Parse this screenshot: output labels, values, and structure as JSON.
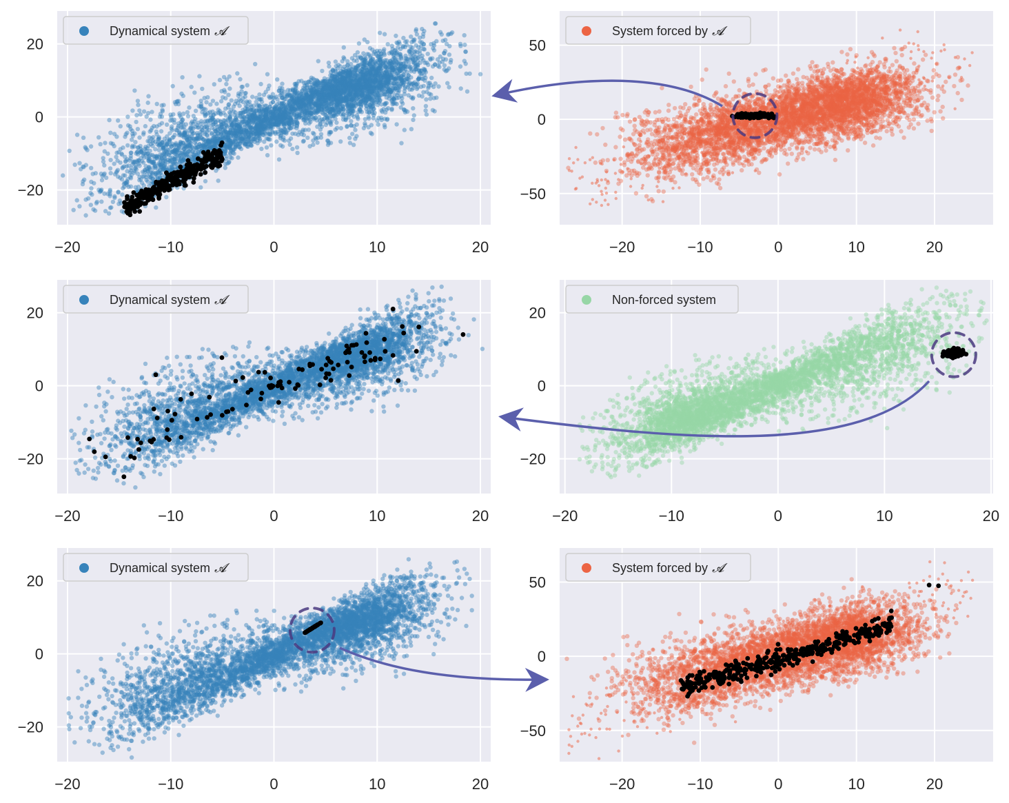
{
  "figure": {
    "background": "#ffffff",
    "axes_facecolor": "#eaeaf2",
    "grid_color": "#ffffff",
    "arrow_color": "#5b5fac",
    "highlight_color": "#000000",
    "circle_color": "#4a3a80"
  },
  "chart_data": [
    {
      "id": "row1-left",
      "type": "scatter",
      "title": "",
      "legend": {
        "label": "Dynamical system",
        "math_symbol": "𝓐",
        "color": "#3783bb",
        "placement": "upper-left"
      },
      "xlim": [
        -21,
        21
      ],
      "ylim": [
        -29.5,
        29
      ],
      "xticks": [
        -20,
        -10,
        0,
        10,
        20
      ],
      "yticks": [
        -20,
        0,
        20
      ],
      "xtick_labels": [
        "−20",
        "−10",
        "0",
        "10",
        "20"
      ],
      "ytick_labels": [
        "−20",
        "0",
        "20"
      ],
      "attractor": "lorenz",
      "point_color": "#3783bb",
      "highlight": {
        "description": "cluster of black points in lower-left lobe",
        "x_range": [
          -14.5,
          -5
        ],
        "y_range": [
          -25,
          -9
        ]
      }
    },
    {
      "id": "row1-right",
      "type": "scatter",
      "legend": {
        "label": "System forced by",
        "math_symbol": "𝓐",
        "color": "#ec6444",
        "placement": "upper-left"
      },
      "xlim": [
        -28,
        27.5
      ],
      "ylim": [
        -71,
        73
      ],
      "xticks": [
        -20,
        -10,
        0,
        10,
        20
      ],
      "yticks": [
        -50,
        0,
        50
      ],
      "xtick_labels": [
        "−20",
        "−10",
        "0",
        "10",
        "20"
      ],
      "ytick_labels": [
        "−50",
        "0",
        "50"
      ],
      "attractor": "forced-elongated",
      "point_color": "#ec6444",
      "highlight": {
        "description": "tight black cluster near origin, circled",
        "x_range": [
          -6,
          -1
        ],
        "y_range": [
          1,
          5
        ],
        "circle_center": [
          -3,
          2.5
        ]
      }
    },
    {
      "id": "row2-left",
      "type": "scatter",
      "legend": {
        "label": "Dynamical system",
        "math_symbol": "𝓐",
        "color": "#3783bb",
        "placement": "upper-left"
      },
      "xlim": [
        -21,
        21
      ],
      "ylim": [
        -29.5,
        29
      ],
      "xticks": [
        -20,
        -10,
        0,
        10,
        20
      ],
      "yticks": [
        -20,
        0,
        20
      ],
      "xtick_labels": [
        "−20",
        "−10",
        "0",
        "10",
        "20"
      ],
      "ytick_labels": [
        "−20",
        "0",
        "20"
      ],
      "attractor": "lorenz",
      "point_color": "#3783bb",
      "highlight": {
        "description": "scattered black points spread across the attractor",
        "x_range": [
          -16.5,
          16
        ],
        "y_range": [
          -21,
          22
        ]
      }
    },
    {
      "id": "row2-right",
      "type": "scatter",
      "legend": {
        "label": "Non-forced system",
        "math_symbol": "",
        "color": "#97d6a6",
        "placement": "upper-left"
      },
      "xlim": [
        -20.5,
        20.2
      ],
      "ylim": [
        -29.5,
        29
      ],
      "xticks": [
        -20,
        -10,
        0,
        10,
        20
      ],
      "yticks": [
        -20,
        0,
        20
      ],
      "xtick_labels": [
        "−20",
        "−10",
        "0",
        "10",
        "20"
      ],
      "ytick_labels": [
        "−20",
        "0",
        "20"
      ],
      "attractor": "lorenz-mirrored",
      "point_color": "#97d6a6",
      "highlight": {
        "description": "tight black cluster near right lobe edge, circled",
        "x_range": [
          15.7,
          17.2
        ],
        "y_range": [
          7.5,
          10.5
        ],
        "circle_center": [
          16.5,
          8.5
        ]
      }
    },
    {
      "id": "row3-left",
      "type": "scatter",
      "legend": {
        "label": "Dynamical system",
        "math_symbol": "𝓐",
        "color": "#3783bb",
        "placement": "upper-left"
      },
      "xlim": [
        -21,
        21
      ],
      "ylim": [
        -29.5,
        29
      ],
      "xticks": [
        -20,
        -10,
        0,
        10,
        20
      ],
      "yticks": [
        -20,
        0,
        20
      ],
      "xtick_labels": [
        "−20",
        "−10",
        "0",
        "10",
        "20"
      ],
      "ytick_labels": [
        "−20",
        "0",
        "20"
      ],
      "attractor": "lorenz",
      "point_color": "#3783bb",
      "highlight": {
        "description": "short black segment near center, circled",
        "x_range": [
          3,
          4.7
        ],
        "y_range": [
          5.5,
          9
        ],
        "circle_center": [
          3.7,
          6.5
        ]
      }
    },
    {
      "id": "row3-right",
      "type": "scatter",
      "legend": {
        "label": "System forced by",
        "math_symbol": "𝓐",
        "color": "#ec6444",
        "placement": "upper-left"
      },
      "xlim": [
        -28,
        27.5
      ],
      "ylim": [
        -71,
        73
      ],
      "xticks": [
        -20,
        -10,
        0,
        10,
        20
      ],
      "yticks": [
        -50,
        0,
        50
      ],
      "xtick_labels": [
        "−20",
        "−10",
        "0",
        "10",
        "20"
      ],
      "ytick_labels": [
        "−50",
        "0",
        "50"
      ],
      "attractor": "forced-elongated",
      "point_color": "#ec6444",
      "highlight": {
        "description": "black trajectory along the main diagonal",
        "x_range": [
          -12.5,
          20.5
        ],
        "y_range": [
          -32,
          49
        ]
      }
    }
  ],
  "arrows": [
    {
      "from": "row1-right circle",
      "to": "row1-left",
      "direction": "left"
    },
    {
      "from": "row2-right circle",
      "to": "row2-left",
      "direction": "left"
    },
    {
      "from": "row3-left circle",
      "to": "row3-right",
      "direction": "right"
    }
  ]
}
